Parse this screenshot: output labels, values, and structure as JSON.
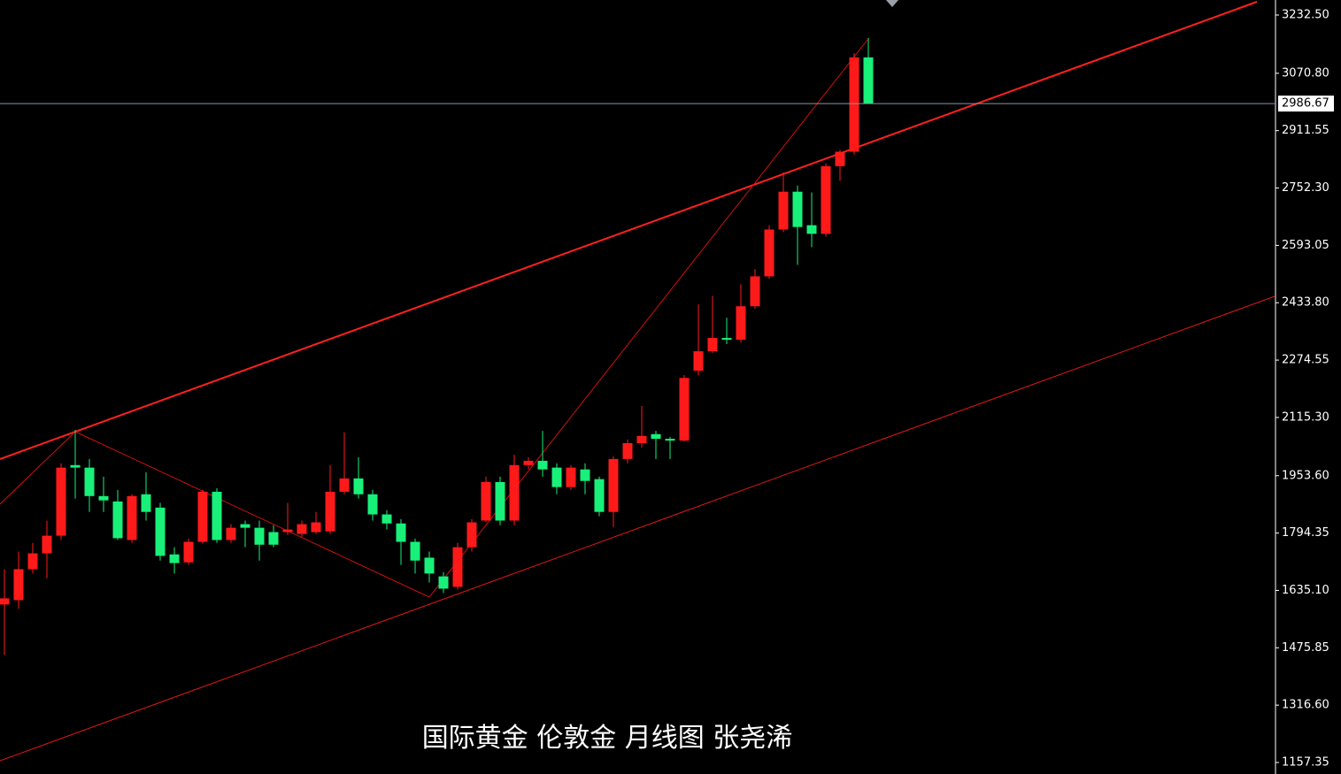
{
  "chart_data": {
    "type": "candlestick",
    "title": "国际黄金 伦敦金  月线图 张尧浠",
    "up_color": "#ff1a1a",
    "down_color": "#18f07a",
    "ylim": [
      1125.4,
      3274.25
    ],
    "yticks": [
      {
        "value": 3232.5,
        "label": "3232.50"
      },
      {
        "value": 3070.8,
        "label": "3070.80"
      },
      {
        "value": 2911.55,
        "label": "2911.55"
      },
      {
        "value": 2752.3,
        "label": "2752.30"
      },
      {
        "value": 2593.05,
        "label": "2593.05"
      },
      {
        "value": 2433.8,
        "label": "2433.80"
      },
      {
        "value": 2274.55,
        "label": "2274.55"
      },
      {
        "value": 2115.3,
        "label": "2115.30"
      },
      {
        "value": 1953.6,
        "label": "1953.60"
      },
      {
        "value": 1794.35,
        "label": "1794.35"
      },
      {
        "value": 1635.1,
        "label": "1635.10"
      },
      {
        "value": 1475.85,
        "label": "1475.85"
      },
      {
        "value": 1316.6,
        "label": "1316.60"
      },
      {
        "value": 1157.35,
        "label": "1157.35"
      }
    ],
    "last_price": {
      "value": 2986.67,
      "label": "2986.67"
    },
    "open": [
      1596,
      1608,
      1694,
      1738,
      1787,
      1983,
      1976,
      1897,
      1882,
      1775,
      1902,
      1865,
      1735,
      1713,
      1770,
      1909,
      1775,
      1819,
      1809,
      1797,
      1797,
      1792,
      1797,
      1799,
      1909,
      1946,
      1902,
      1846,
      1821,
      1770,
      1726,
      1674,
      1645,
      1755,
      1829,
      1936,
      1829,
      1983,
      1995,
      1976,
      1922,
      1971,
      1944,
      1853,
      2000,
      2044,
      2069,
      2056,
      2051,
      2245,
      2299,
      2336,
      2331,
      2424,
      2507,
      2637,
      2742,
      2649,
      2625,
      2813,
      2853,
      3115
    ],
    "high": [
      1694,
      1743,
      1767,
      1829,
      1988,
      2081,
      2000,
      1951,
      1914,
      1902,
      1963,
      1878,
      1755,
      1779,
      1914,
      1919,
      1819,
      1829,
      1829,
      1816,
      1878,
      1829,
      1853,
      1983,
      2074,
      2005,
      1914,
      1858,
      1833,
      1779,
      1743,
      1686,
      1767,
      1833,
      1951,
      1951,
      2012,
      2005,
      2078,
      1988,
      1983,
      1988,
      1951,
      2007,
      2054,
      2147,
      2078,
      2061,
      2233,
      2429,
      2453,
      2392,
      2485,
      2527,
      2649,
      2796,
      2759,
      2740,
      2821,
      2858,
      3127,
      3169
    ],
    "low": [
      1456,
      1584,
      1682,
      1669,
      1775,
      1890,
      1853,
      1853,
      1775,
      1767,
      1829,
      1718,
      1682,
      1706,
      1765,
      1767,
      1767,
      1755,
      1718,
      1755,
      1789,
      1784,
      1792,
      1792,
      1902,
      1890,
      1829,
      1804,
      1706,
      1682,
      1657,
      1628,
      1637,
      1743,
      1824,
      1816,
      1816,
      1971,
      1951,
      1902,
      1914,
      1902,
      1841,
      1811,
      1988,
      2032,
      2000,
      2000,
      2049,
      2233,
      2294,
      2319,
      2323,
      2417,
      2500,
      2630,
      2539,
      2588,
      2617,
      2772,
      2845,
      2986.67
    ],
    "close": [
      1613,
      1694,
      1738,
      1787,
      1976,
      1976,
      1897,
      1885,
      1780,
      1897,
      1853,
      1731,
      1711,
      1770,
      1909,
      1775,
      1809,
      1809,
      1762,
      1762,
      1804,
      1819,
      1824,
      1909,
      1946,
      1902,
      1846,
      1821,
      1770,
      1718,
      1682,
      1640,
      1755,
      1824,
      1936,
      1829,
      1983,
      1995,
      1971,
      1922,
      1976,
      1939,
      1853,
      2000,
      2044,
      2064,
      2056,
      2051,
      2225,
      2299,
      2336,
      2331,
      2424,
      2507,
      2637,
      2742,
      2644,
      2625,
      2813,
      2853,
      3115,
      2986.67
    ]
  }
}
